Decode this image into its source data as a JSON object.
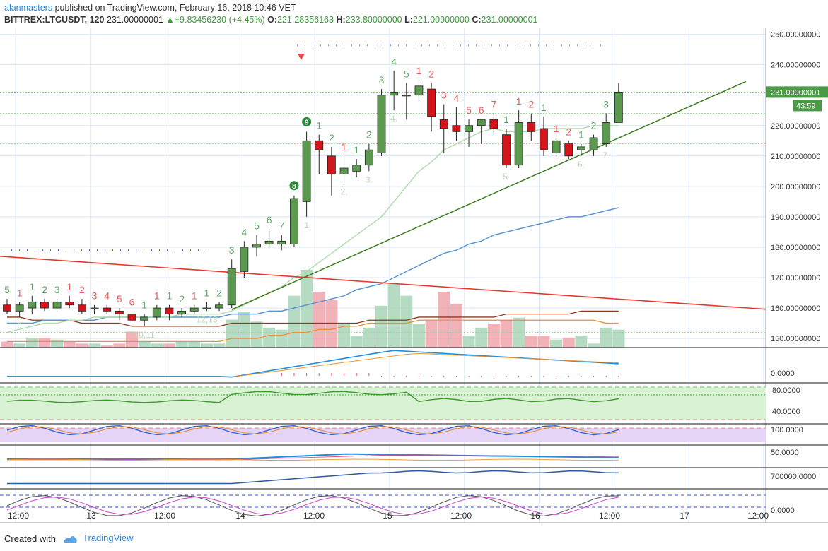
{
  "header": {
    "author": "alanmasters",
    "published_text": "published on TradingView.com, February 16, 2018 10:46 VET",
    "symbol": "BITTREX:LTCUSDT, 120",
    "last": "231.00000001",
    "change": "+9.83456230 (+4.45%)",
    "open_label": "O:",
    "open": "221.28356163",
    "high_label": "H:",
    "high": "233.80000000",
    "low_label": "L:",
    "low": "221.00900000",
    "close_label": "C:",
    "close": "231.00000001"
  },
  "footer": {
    "created_with": "Created with",
    "brand": "TradingView"
  },
  "colors": {
    "up": "#5b9a4e",
    "down": "#d3141b",
    "up_vol": "#a8d5b8",
    "down_vol": "#eea4ac",
    "trend_red": "#e8372f",
    "trend_green": "#3f7d22"
  },
  "chart_data": {
    "type": "candlestick",
    "symbol": "BITTREX:LTCUSDT",
    "interval": "120",
    "price_axis": {
      "ticks": [
        "250.00000000",
        "240.00000000",
        "230.00000000",
        "220.00000000",
        "210.00000000",
        "200.00000000",
        "190.00000000",
        "180.00000000",
        "170.00000000",
        "160.00000000",
        "150.00000000"
      ],
      "range": [
        147,
        252
      ]
    },
    "price_label": "231.00000001",
    "countdown_label": "43:59",
    "time_axis": {
      "ticks": [
        "12:00",
        "13",
        "12:00",
        "14",
        "12:00",
        "15",
        "12:00",
        "16",
        "12:00",
        "17",
        "12:00"
      ]
    },
    "candles": [
      {
        "o": 161,
        "h": 163,
        "l": 158,
        "c": 159
      },
      {
        "o": 159,
        "h": 162,
        "l": 157,
        "c": 161
      },
      {
        "o": 160,
        "h": 164,
        "l": 158,
        "c": 162
      },
      {
        "o": 162,
        "h": 163,
        "l": 159,
        "c": 160
      },
      {
        "o": 160,
        "h": 163,
        "l": 159,
        "c": 162
      },
      {
        "o": 162,
        "h": 164,
        "l": 160,
        "c": 161
      },
      {
        "o": 161,
        "h": 163,
        "l": 158,
        "c": 159
      },
      {
        "o": 160,
        "h": 161,
        "l": 158,
        "c": 160
      },
      {
        "o": 160,
        "h": 161,
        "l": 158,
        "c": 159
      },
      {
        "o": 159,
        "h": 160,
        "l": 156,
        "c": 158
      },
      {
        "o": 158,
        "h": 159,
        "l": 154,
        "c": 156
      },
      {
        "o": 156,
        "h": 158,
        "l": 154,
        "c": 157
      },
      {
        "o": 157,
        "h": 161,
        "l": 156,
        "c": 160
      },
      {
        "o": 160,
        "h": 161,
        "l": 156,
        "c": 158
      },
      {
        "o": 158,
        "h": 160,
        "l": 157,
        "c": 159
      },
      {
        "o": 159,
        "h": 161,
        "l": 158,
        "c": 160
      },
      {
        "o": 160,
        "h": 162,
        "l": 159,
        "c": 160
      },
      {
        "o": 160,
        "h": 162,
        "l": 159,
        "c": 161
      },
      {
        "o": 161,
        "h": 176,
        "l": 160,
        "c": 173
      },
      {
        "o": 172,
        "h": 182,
        "l": 170,
        "c": 180
      },
      {
        "o": 180,
        "h": 184,
        "l": 177,
        "c": 181
      },
      {
        "o": 181,
        "h": 186,
        "l": 180,
        "c": 182
      },
      {
        "o": 181,
        "h": 184,
        "l": 179,
        "c": 182
      },
      {
        "o": 181,
        "h": 197,
        "l": 180,
        "c": 196
      },
      {
        "o": 195,
        "h": 218,
        "l": 190,
        "c": 215
      },
      {
        "o": 215,
        "h": 217,
        "l": 204,
        "c": 212
      },
      {
        "o": 210,
        "h": 213,
        "l": 197,
        "c": 204
      },
      {
        "o": 204,
        "h": 210,
        "l": 201,
        "c": 206
      },
      {
        "o": 205,
        "h": 209,
        "l": 203,
        "c": 207
      },
      {
        "o": 207,
        "h": 214,
        "l": 205,
        "c": 212
      },
      {
        "o": 211,
        "h": 232,
        "l": 210,
        "c": 230
      },
      {
        "o": 230,
        "h": 238,
        "l": 225,
        "c": 231
      },
      {
        "o": 230,
        "h": 234,
        "l": 222,
        "c": 230
      },
      {
        "o": 230,
        "h": 235,
        "l": 228,
        "c": 233
      },
      {
        "o": 232,
        "h": 234,
        "l": 218,
        "c": 223
      },
      {
        "o": 222,
        "h": 227,
        "l": 211,
        "c": 219
      },
      {
        "o": 220,
        "h": 226,
        "l": 215,
        "c": 218
      },
      {
        "o": 218,
        "h": 222,
        "l": 213,
        "c": 220
      },
      {
        "o": 220,
        "h": 222,
        "l": 214,
        "c": 222
      },
      {
        "o": 222,
        "h": 224,
        "l": 217,
        "c": 219
      },
      {
        "o": 217,
        "h": 219,
        "l": 206,
        "c": 207
      },
      {
        "o": 207,
        "h": 225,
        "l": 206,
        "c": 221
      },
      {
        "o": 221,
        "h": 224,
        "l": 215,
        "c": 218
      },
      {
        "o": 219,
        "h": 223,
        "l": 210,
        "c": 212
      },
      {
        "o": 211,
        "h": 216,
        "l": 209,
        "c": 215
      },
      {
        "o": 214,
        "h": 215,
        "l": 209,
        "c": 210
      },
      {
        "o": 212,
        "h": 214,
        "l": 210,
        "c": 213
      },
      {
        "o": 212,
        "h": 217,
        "l": 210,
        "c": 216
      },
      {
        "o": 214,
        "h": 224,
        "l": 213,
        "c": 221
      },
      {
        "o": 221,
        "h": 234,
        "l": 221,
        "c": 231
      }
    ],
    "volume": [
      3,
      2,
      5,
      5,
      4,
      3,
      2,
      2,
      1,
      2,
      8,
      3,
      2,
      2,
      3,
      3,
      2,
      2,
      14,
      18,
      13,
      10,
      9,
      26,
      39,
      28,
      24,
      12,
      6,
      10,
      21,
      32,
      26,
      12,
      14,
      28,
      22,
      6,
      10,
      12,
      14,
      15,
      6,
      6,
      4,
      5,
      6,
      2,
      10,
      9
    ],
    "td_labels": [
      {
        "i": 0,
        "t": "5",
        "c": "up"
      },
      {
        "i": 1,
        "t": "1",
        "c": "down"
      },
      {
        "i": 2,
        "t": "1",
        "c": "up"
      },
      {
        "i": 3,
        "t": "2",
        "c": "up"
      },
      {
        "i": 4,
        "t": "3",
        "c": "up"
      },
      {
        "i": 5,
        "t": "1",
        "c": "down"
      },
      {
        "i": 6,
        "t": "2",
        "c": "down"
      },
      {
        "i": 7,
        "t": "3",
        "c": "down"
      },
      {
        "i": 8,
        "t": "4",
        "c": "down"
      },
      {
        "i": 9,
        "t": "5",
        "c": "down"
      },
      {
        "i": 10,
        "t": "6",
        "c": "down"
      },
      {
        "i": 11,
        "t": "1",
        "c": "up"
      },
      {
        "i": 12,
        "t": "1",
        "c": "down"
      },
      {
        "i": 13,
        "t": "1",
        "c": "up"
      },
      {
        "i": 14,
        "t": "2",
        "c": "up"
      },
      {
        "i": 15,
        "t": "1",
        "c": "down"
      },
      {
        "i": 16,
        "t": "1",
        "c": "up"
      },
      {
        "i": 17,
        "t": "2",
        "c": "up"
      },
      {
        "i": 18,
        "t": "3",
        "c": "up"
      },
      {
        "i": 19,
        "t": "4",
        "c": "up"
      },
      {
        "i": 20,
        "t": "5",
        "c": "up"
      },
      {
        "i": 21,
        "t": "6",
        "c": "up"
      },
      {
        "i": 22,
        "t": "7",
        "c": "up"
      },
      {
        "i": 25,
        "t": "1",
        "c": "up"
      },
      {
        "i": 26,
        "t": "2",
        "c": "up"
      },
      {
        "i": 27,
        "t": "1",
        "c": "down"
      },
      {
        "i": 28,
        "t": "1",
        "c": "up"
      },
      {
        "i": 29,
        "t": "2",
        "c": "up"
      },
      {
        "i": 30,
        "t": "3",
        "c": "up"
      },
      {
        "i": 31,
        "t": "4",
        "c": "up"
      },
      {
        "i": 32,
        "t": "5",
        "c": "up"
      },
      {
        "i": 33,
        "t": "1",
        "c": "down"
      },
      {
        "i": 34,
        "t": "2",
        "c": "down"
      },
      {
        "i": 35,
        "t": "3",
        "c": "down"
      },
      {
        "i": 36,
        "t": "4",
        "c": "down"
      },
      {
        "i": 37,
        "t": "5",
        "c": "down"
      },
      {
        "i": 38,
        "t": "6",
        "c": "down"
      },
      {
        "i": 39,
        "t": "7",
        "c": "down"
      },
      {
        "i": 40,
        "t": "1",
        "c": "up"
      },
      {
        "i": 41,
        "t": "1",
        "c": "down"
      },
      {
        "i": 42,
        "t": "2",
        "c": "down"
      },
      {
        "i": 43,
        "t": "1",
        "c": "up"
      },
      {
        "i": 44,
        "t": "1",
        "c": "down"
      },
      {
        "i": 45,
        "t": "2",
        "c": "down"
      },
      {
        "i": 46,
        "t": "1",
        "c": "up"
      },
      {
        "i": 47,
        "t": "2",
        "c": "up"
      },
      {
        "i": 48,
        "t": "3",
        "c": "up"
      }
    ],
    "td_badges": [
      {
        "i": 23,
        "t": "8"
      },
      {
        "i": 24,
        "t": "9"
      }
    ],
    "sub_labels": [
      {
        "t": "9",
        "i": 1
      },
      {
        "t": "10,11",
        "i": 11
      },
      {
        "t": "12,13",
        "i": 16
      },
      {
        "t": "1",
        "i": 24
      },
      {
        "t": "2.",
        "i": 27
      },
      {
        "t": "3.",
        "i": 29
      },
      {
        "t": "4.",
        "i": 31
      },
      {
        "t": "5.",
        "i": 40
      },
      {
        "t": "6.",
        "i": 46
      },
      {
        "t": "7.",
        "i": 48
      }
    ],
    "ma_fast": [
      152,
      153,
      154,
      155,
      155,
      156,
      156,
      157,
      157,
      157,
      157,
      157,
      157,
      157,
      158,
      158,
      158,
      158,
      159,
      161,
      163,
      165,
      167,
      170,
      172,
      175,
      178,
      181,
      184,
      187,
      190,
      195,
      200,
      205,
      208,
      212,
      214,
      216,
      218,
      219,
      218,
      218,
      218,
      219,
      219,
      219,
      219,
      220,
      220,
      220
    ],
    "ma_blue": [
      155,
      155,
      155,
      156,
      156,
      156,
      156,
      156,
      157,
      157,
      157,
      157,
      157,
      157,
      157,
      157,
      157,
      157,
      158,
      158,
      158,
      159,
      159,
      160,
      161,
      162,
      163,
      164,
      166,
      167,
      168,
      170,
      172,
      174,
      176,
      178,
      179,
      181,
      182,
      184,
      185,
      186,
      187,
      188,
      189,
      190,
      190,
      191,
      192,
      193
    ],
    "ma_brown": [
      157,
      157,
      156,
      156,
      156,
      156,
      155,
      155,
      155,
      155,
      154,
      154,
      154,
      154,
      154,
      154,
      154,
      154,
      155,
      155,
      155,
      155,
      155,
      155,
      155,
      155,
      155,
      155,
      155,
      156,
      156,
      156,
      156,
      157,
      157,
      157,
      157,
      157,
      157,
      157,
      158,
      158,
      158,
      158,
      158,
      158,
      159,
      159,
      159,
      159
    ],
    "ma_orange": [
      149,
      149,
      149,
      149,
      149,
      149,
      149,
      149,
      149,
      149,
      149,
      149,
      149,
      149,
      149,
      149,
      149,
      149,
      150,
      150,
      150,
      151,
      151,
      152,
      152,
      153,
      153,
      154,
      154,
      155,
      155,
      155,
      155,
      156,
      156,
      156,
      156,
      156,
      156,
      156,
      156,
      156,
      156,
      156,
      156,
      156,
      156,
      156,
      155,
      155
    ],
    "indicator_axes": [
      {
        "label": "0.0000"
      },
      {
        "label": "80.0000"
      },
      {
        "label": "40.0000"
      },
      {
        "label": "100.0000"
      },
      {
        "label": "50.0000"
      },
      {
        "label": "700000.0000"
      },
      {
        "label": "0.0000"
      }
    ]
  }
}
